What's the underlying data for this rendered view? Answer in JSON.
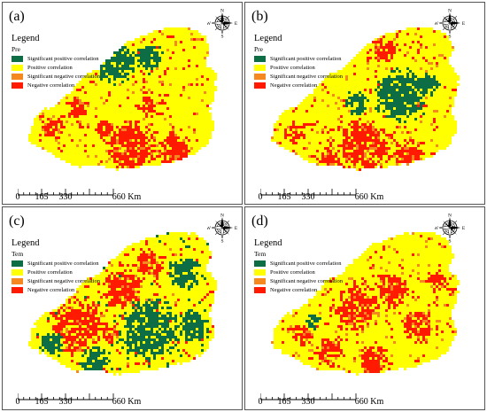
{
  "legend": {
    "title": "Legend",
    "items": [
      {
        "label": "Significant positive correlation",
        "color": "#0d6e45"
      },
      {
        "label": "Positive correlation",
        "color": "#ffff00"
      },
      {
        "label": "Significant negative correlation",
        "color": "#f5891f"
      },
      {
        "label": "Negative correlation",
        "color": "#ff1a00"
      }
    ]
  },
  "compass": {
    "n": "N",
    "s": "S",
    "e": "E",
    "w": "W"
  },
  "scale_bar": {
    "labels": [
      "0",
      "165",
      "330",
      "660 Km"
    ]
  },
  "panels": [
    {
      "label": "(a)",
      "variable": "Pre"
    },
    {
      "label": "(b)",
      "variable": "Pre"
    },
    {
      "label": "(c)",
      "variable": "Tem"
    },
    {
      "label": "(d)",
      "variable": "Tem"
    }
  ]
}
